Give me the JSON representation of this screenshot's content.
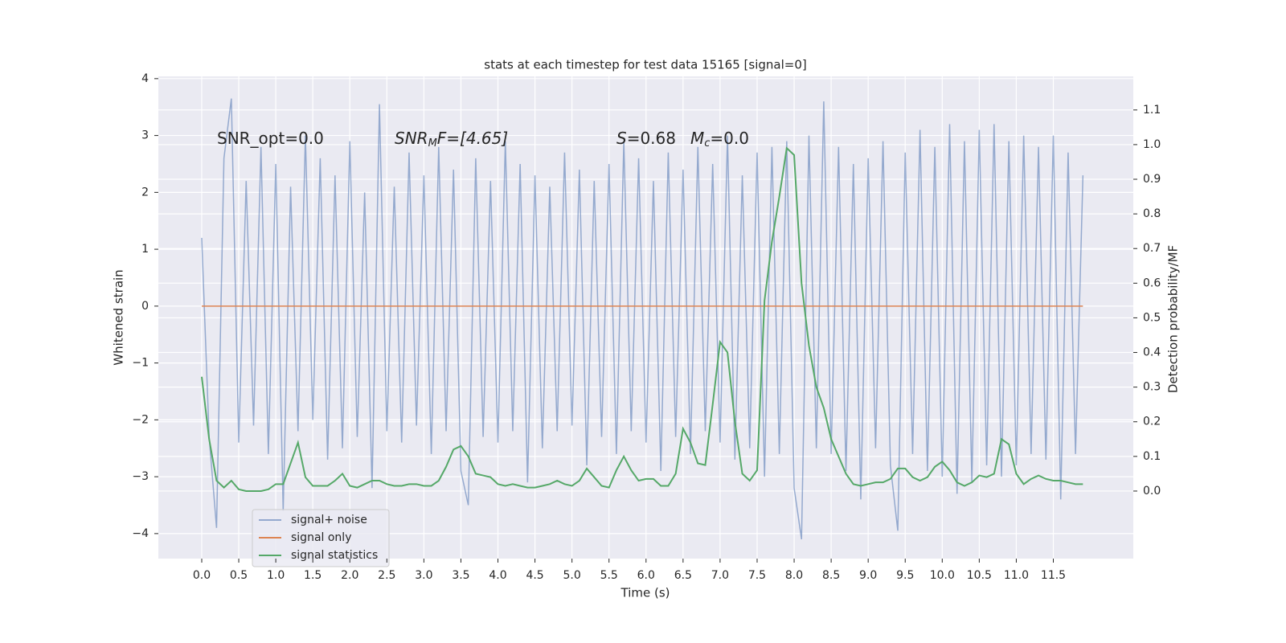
{
  "chart_data": {
    "type": "line",
    "title": "stats at each timestep for test data 15165 [signal=0]",
    "xlabel": "Time (s)",
    "ylabel": "Whitened strain",
    "y2label": "Detection probability/MF",
    "annotations": [
      [
        "SNR_opt=0.0"
      ],
      [
        "SNR",
        "M",
        "F=[4.65]"
      ],
      [
        "S",
        "=0.68",
        "M",
        "c",
        "=0.0"
      ]
    ],
    "grid": true,
    "legend": "lower left",
    "xlim": [
      -0.586,
      12.58
    ],
    "ylim": [
      -4.44,
      4.04
    ],
    "y2lim": [
      -0.195,
      1.197
    ],
    "xticks": [
      {
        "value": 0,
        "label": "0.0"
      },
      {
        "value": 0.5,
        "label": "0.5"
      },
      {
        "value": 1,
        "label": "1.0"
      },
      {
        "value": 1.5,
        "label": "1.5"
      },
      {
        "value": 2,
        "label": "2.0"
      },
      {
        "value": 2.5,
        "label": "2.5"
      },
      {
        "value": 3,
        "label": "3.0"
      },
      {
        "value": 3.5,
        "label": "3.5"
      },
      {
        "value": 4,
        "label": "4.0"
      },
      {
        "value": 4.5,
        "label": "4.5"
      },
      {
        "value": 5,
        "label": "5.0"
      },
      {
        "value": 5.5,
        "label": "5.5"
      },
      {
        "value": 6,
        "label": "6.0"
      },
      {
        "value": 6.5,
        "label": "6.5"
      },
      {
        "value": 7,
        "label": "7.0"
      },
      {
        "value": 7.5,
        "label": "7.5"
      },
      {
        "value": 8,
        "label": "8.0"
      },
      {
        "value": 8.5,
        "label": "8.5"
      },
      {
        "value": 9,
        "label": "9.0"
      },
      {
        "value": 9.5,
        "label": "9.5"
      },
      {
        "value": 10,
        "label": "10.0"
      },
      {
        "value": 10.5,
        "label": "10.5"
      },
      {
        "value": 11,
        "label": "11.0"
      },
      {
        "value": 11.5,
        "label": "11.5"
      }
    ],
    "yticks": [
      {
        "value": -4,
        "label": "−4"
      },
      {
        "value": -3,
        "label": "−3"
      },
      {
        "value": -2,
        "label": "−2"
      },
      {
        "value": -1,
        "label": "−1"
      },
      0,
      1,
      2,
      3,
      4
    ],
    "y2ticks": [
      {
        "value": 0,
        "label": "0.0"
      },
      {
        "value": 0.1,
        "label": "0.1"
      },
      {
        "value": 0.2,
        "label": "0.2"
      },
      {
        "value": 0.3,
        "label": "0.3"
      },
      {
        "value": 0.4,
        "label": "0.4"
      },
      {
        "value": 0.5,
        "label": "0.5"
      },
      {
        "value": 0.6,
        "label": "0.6"
      },
      {
        "value": 0.7,
        "label": "0.7"
      },
      {
        "value": 0.8,
        "label": "0.8"
      },
      {
        "value": 0.9,
        "label": "0.9"
      },
      {
        "value": 1,
        "label": "1.0"
      },
      {
        "value": 1.1,
        "label": "1.1"
      }
    ],
    "x": [
      0,
      0.1,
      0.2,
      0.3,
      0.4,
      0.5,
      0.6,
      0.7,
      0.8,
      0.9,
      1,
      1.1,
      1.2,
      1.3,
      1.4,
      1.5,
      1.6,
      1.7,
      1.8,
      1.9,
      2,
      2.1,
      2.2,
      2.3,
      2.4,
      2.5,
      2.6,
      2.7,
      2.8,
      2.9,
      3,
      3.1,
      3.2,
      3.3,
      3.4,
      3.5,
      3.6,
      3.7,
      3.8,
      3.9,
      4,
      4.1,
      4.2,
      4.3,
      4.4,
      4.5,
      4.6,
      4.7,
      4.8,
      4.9,
      5,
      5.1,
      5.2,
      5.3,
      5.4,
      5.5,
      5.6,
      5.7,
      5.8,
      5.9,
      6,
      6.1,
      6.2,
      6.3,
      6.4,
      6.5,
      6.6,
      6.7,
      6.8,
      6.9,
      7,
      7.1,
      7.2,
      7.3,
      7.4,
      7.5,
      7.6,
      7.7,
      7.8,
      7.9,
      8,
      8.1,
      8.2,
      8.3,
      8.4,
      8.5,
      8.6,
      8.7,
      8.8,
      8.9,
      9,
      9.1,
      9.2,
      9.3,
      9.4,
      9.5,
      9.6,
      9.7,
      9.8,
      9.9,
      10,
      10.1,
      10.2,
      10.3,
      10.4,
      10.5,
      10.6,
      10.7,
      10.8,
      10.9,
      11,
      11.1,
      11.2,
      11.3,
      11.4,
      11.5,
      11.6,
      11.7,
      11.8,
      11.9
    ],
    "series": [
      {
        "name": "signal+ noise",
        "color": "#4c72b0",
        "opacity": 0.55,
        "values": [
          1.2,
          -2.3,
          -3.9,
          2.6,
          3.65,
          -2.4,
          2.2,
          -2.1,
          2.8,
          -2.6,
          2.5,
          -3.6,
          2.1,
          -2.2,
          3.0,
          -2.0,
          2.6,
          -2.7,
          2.3,
          -2.5,
          2.9,
          -2.3,
          2.0,
          -3.2,
          3.55,
          -2.2,
          2.1,
          -2.4,
          2.7,
          -2.1,
          2.3,
          -2.6,
          2.8,
          -2.2,
          2.4,
          -2.9,
          -3.5,
          2.6,
          -2.3,
          2.2,
          -2.4,
          2.9,
          -2.2,
          2.5,
          -3.1,
          2.3,
          -2.5,
          2.1,
          -2.2,
          2.7,
          -2.1,
          2.4,
          -2.8,
          2.2,
          -2.3,
          2.5,
          -2.6,
          2.9,
          -2.2,
          2.6,
          -2.4,
          2.2,
          -2.9,
          2.7,
          -2.3,
          2.4,
          -2.6,
          2.8,
          -2.2,
          2.5,
          -2.4,
          3.0,
          -2.7,
          2.3,
          -2.5,
          2.7,
          -3.0,
          2.8,
          -2.6,
          2.9,
          -3.2,
          -4.1,
          3.0,
          -2.5,
          3.6,
          -2.6,
          2.8,
          -2.9,
          2.5,
          -3.4,
          2.6,
          -2.5,
          2.9,
          -2.8,
          -3.95,
          2.7,
          -2.6,
          3.1,
          -2.9,
          2.8,
          -3.0,
          3.2,
          -3.3,
          2.9,
          -3.1,
          3.1,
          -2.8,
          3.2,
          -3.0,
          2.9,
          -2.8,
          3.0,
          -2.6,
          2.8,
          -2.7,
          3.0,
          -3.4,
          2.7,
          -2.6,
          2.3
        ]
      },
      {
        "name": "signal only",
        "color": "#dd8452",
        "opacity": 1,
        "values": [
          0,
          0,
          0,
          0,
          0,
          0,
          0,
          0,
          0,
          0,
          0,
          0,
          0,
          0,
          0,
          0,
          0,
          0,
          0,
          0,
          0,
          0,
          0,
          0,
          0,
          0,
          0,
          0,
          0,
          0,
          0,
          0,
          0,
          0,
          0,
          0,
          0,
          0,
          0,
          0,
          0,
          0,
          0,
          0,
          0,
          0,
          0,
          0,
          0,
          0,
          0,
          0,
          0,
          0,
          0,
          0,
          0,
          0,
          0,
          0,
          0,
          0,
          0,
          0,
          0,
          0,
          0,
          0,
          0,
          0,
          0,
          0,
          0,
          0,
          0,
          0,
          0,
          0,
          0,
          0,
          0,
          0,
          0,
          0,
          0,
          0,
          0,
          0,
          0,
          0,
          0,
          0,
          0,
          0,
          0,
          0,
          0,
          0,
          0,
          0,
          0,
          0,
          0,
          0,
          0,
          0,
          0,
          0,
          0,
          0,
          0,
          0,
          0,
          0,
          0,
          0,
          0,
          0,
          0,
          0
        ]
      },
      {
        "name": "signal statistics",
        "color": "#55a868",
        "opacity": 1,
        "axis": "y2",
        "values": [
          0.33,
          0.15,
          0.03,
          0.01,
          0.03,
          0.005,
          0,
          0,
          0,
          0.005,
          0.02,
          0.02,
          0.08,
          0.14,
          0.04,
          0.015,
          0.015,
          0.015,
          0.03,
          0.05,
          0.015,
          0.01,
          0.02,
          0.03,
          0.03,
          0.02,
          0.015,
          0.015,
          0.02,
          0.02,
          0.015,
          0.015,
          0.03,
          0.07,
          0.12,
          0.13,
          0.1,
          0.05,
          0.045,
          0.04,
          0.02,
          0.015,
          0.02,
          0.015,
          0.01,
          0.01,
          0.015,
          0.02,
          0.03,
          0.02,
          0.015,
          0.03,
          0.065,
          0.04,
          0.015,
          0.01,
          0.06,
          0.1,
          0.06,
          0.03,
          0.035,
          0.035,
          0.015,
          0.015,
          0.05,
          0.18,
          0.14,
          0.08,
          0.075,
          0.25,
          0.43,
          0.4,
          0.2,
          0.05,
          0.03,
          0.06,
          0.55,
          0.72,
          0.85,
          0.99,
          0.97,
          0.6,
          0.42,
          0.3,
          0.24,
          0.15,
          0.1,
          0.05,
          0.02,
          0.015,
          0.02,
          0.025,
          0.025,
          0.035,
          0.065,
          0.065,
          0.04,
          0.03,
          0.04,
          0.07,
          0.085,
          0.06,
          0.025,
          0.015,
          0.025,
          0.045,
          0.04,
          0.05,
          0.15,
          0.135,
          0.05,
          0.02,
          0.035,
          0.045,
          0.035,
          0.03,
          0.03,
          0.025,
          0.02,
          0.02
        ]
      }
    ]
  }
}
